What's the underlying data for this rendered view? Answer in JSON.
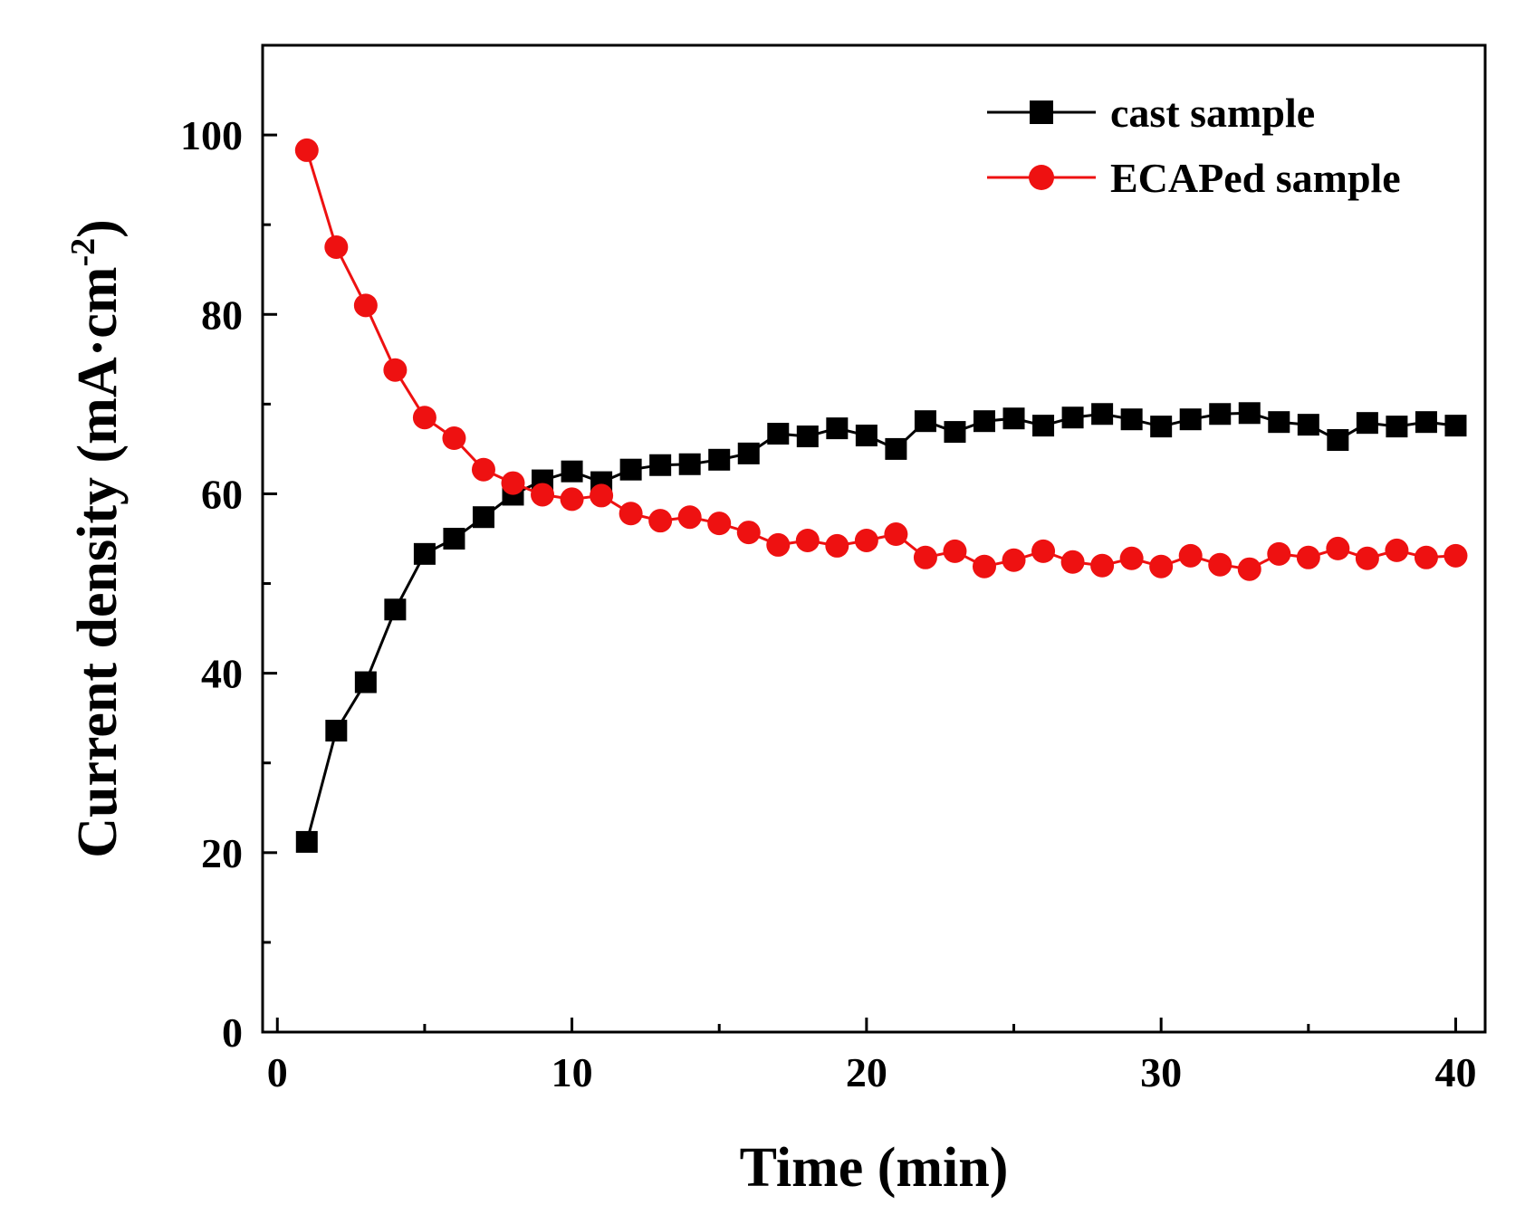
{
  "chart_data": {
    "type": "line",
    "title": "",
    "xlabel": "Time (min)",
    "ylabel_main": "Current density (mA·cm",
    "ylabel_sup": "-2",
    "ylabel_end": ")",
    "xlim": [
      -0.5,
      41
    ],
    "ylim": [
      0,
      110
    ],
    "xticks": [
      0,
      10,
      20,
      30,
      40
    ],
    "xtick_labels": [
      "0",
      "10",
      "20",
      "30",
      "40"
    ],
    "xminor_step": 5,
    "yticks": [
      0,
      20,
      40,
      60,
      80,
      100
    ],
    "ytick_labels": [
      "0",
      "20",
      "40",
      "60",
      "80",
      "100"
    ],
    "yminor_step": 10,
    "grid": false,
    "legend_position": "top-right",
    "x": [
      1,
      2,
      3,
      4,
      5,
      6,
      7,
      8,
      9,
      10,
      11,
      12,
      13,
      14,
      15,
      16,
      17,
      18,
      19,
      20,
      21,
      22,
      23,
      24,
      25,
      26,
      27,
      28,
      29,
      30,
      31,
      32,
      33,
      34,
      35,
      36,
      37,
      38,
      39,
      40
    ],
    "series": [
      {
        "name": "cast sample",
        "color": "#000000",
        "marker": "square",
        "values": [
          21.2,
          33.6,
          39.0,
          47.1,
          53.3,
          55.0,
          57.4,
          59.9,
          61.5,
          62.5,
          61.3,
          62.7,
          63.2,
          63.3,
          63.8,
          64.5,
          66.7,
          66.4,
          67.3,
          66.5,
          65.0,
          68.1,
          66.9,
          68.1,
          68.4,
          67.6,
          68.5,
          68.9,
          68.3,
          67.5,
          68.3,
          68.9,
          69.0,
          68.0,
          67.7,
          66.0,
          67.9,
          67.5,
          68.0,
          67.6
        ]
      },
      {
        "name": "ECAPed sample",
        "color": "#ee1111",
        "marker": "circle",
        "values": [
          98.3,
          87.5,
          81.0,
          73.8,
          68.5,
          66.2,
          62.7,
          61.2,
          59.9,
          59.4,
          59.8,
          57.8,
          57.0,
          57.4,
          56.7,
          55.7,
          54.3,
          54.8,
          54.2,
          54.8,
          55.5,
          52.9,
          53.6,
          51.9,
          52.6,
          53.6,
          52.4,
          52.0,
          52.8,
          51.9,
          53.1,
          52.1,
          51.6,
          53.3,
          52.9,
          53.9,
          52.8,
          53.7,
          52.9,
          53.1
        ]
      }
    ]
  }
}
